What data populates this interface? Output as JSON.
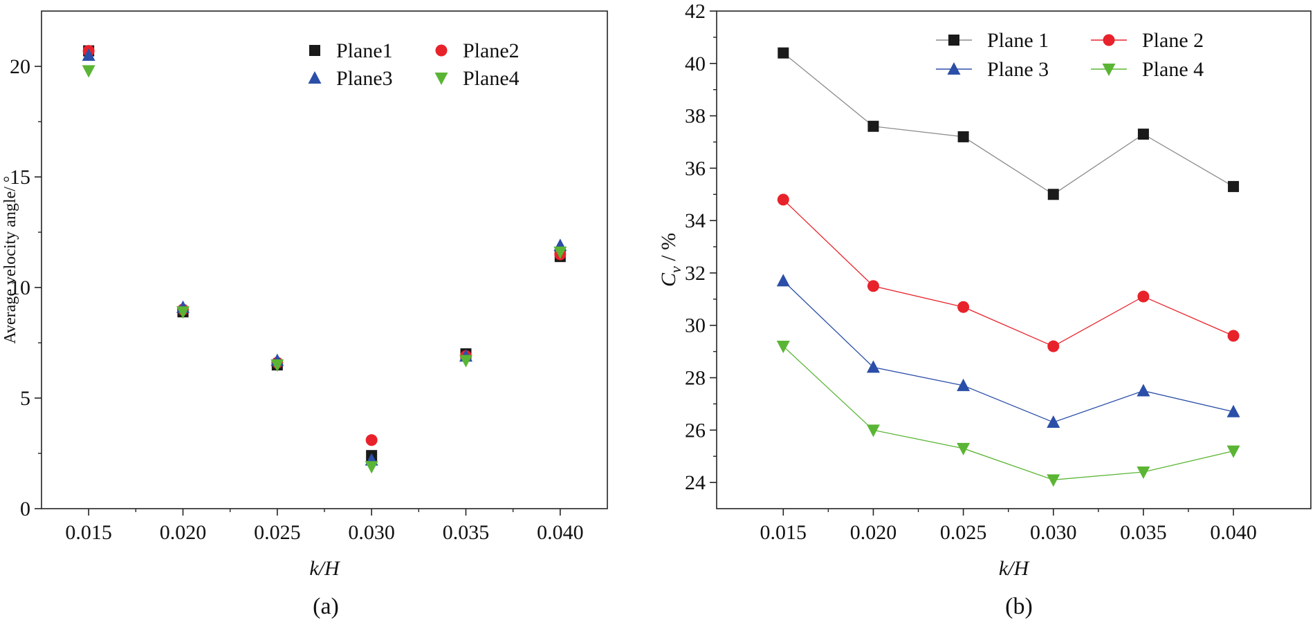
{
  "figure": {
    "panels": [
      "(a)",
      "(b)"
    ]
  },
  "chart_data": [
    {
      "id": "a",
      "type": "scatter",
      "panel_label": "(a)",
      "xlabel": "k/H",
      "ylabel": "Average velocity angle/ °",
      "categories": [
        "0.015",
        "0.020",
        "0.025",
        "0.030",
        "0.035",
        "0.040"
      ],
      "x": [
        0.015,
        0.02,
        0.025,
        0.03,
        0.035,
        0.04
      ],
      "xlim": [
        0.0125,
        0.0425
      ],
      "ylim": [
        0,
        22.5
      ],
      "yticks": [
        0,
        5,
        10,
        15,
        20
      ],
      "legend_placement": "top-right",
      "legend_columns": 2,
      "series": [
        {
          "name": "Plane1",
          "marker": "square",
          "color": "#1a1a1a",
          "values": [
            20.7,
            8.9,
            6.5,
            2.4,
            7.0,
            11.4
          ]
        },
        {
          "name": "Plane2",
          "marker": "circle",
          "color": "#e8222a",
          "values": [
            20.7,
            9.0,
            6.6,
            3.1,
            6.9,
            11.5
          ]
        },
        {
          "name": "Plane3",
          "marker": "triangle-up",
          "color": "#2b4fa8",
          "values": [
            20.5,
            9.1,
            6.7,
            2.2,
            6.9,
            11.9
          ]
        },
        {
          "name": "Plane4",
          "marker": "triangle-down",
          "color": "#5ab534",
          "values": [
            19.8,
            8.9,
            6.5,
            1.9,
            6.7,
            11.6
          ]
        }
      ]
    },
    {
      "id": "b",
      "type": "line",
      "panel_label": "(b)",
      "xlabel": "k/H",
      "ylabel_main": "C",
      "ylabel_sub": "v",
      "ylabel_rest": " / %",
      "categories": [
        "0.015",
        "0.020",
        "0.025",
        "0.030",
        "0.035",
        "0.040"
      ],
      "x": [
        0.015,
        0.02,
        0.025,
        0.03,
        0.035,
        0.04
      ],
      "xlim": [
        0.0113,
        0.0443
      ],
      "ylim": [
        23,
        42
      ],
      "yticks": [
        24,
        26,
        28,
        30,
        32,
        34,
        36,
        38,
        40,
        42
      ],
      "legend_placement": "top",
      "legend_columns": 2,
      "series": [
        {
          "name": "Plane 1",
          "marker": "square",
          "color": "#1a1a1a",
          "line_color": "#8a8a8a",
          "values": [
            40.4,
            37.6,
            37.2,
            35.0,
            37.3,
            35.3
          ]
        },
        {
          "name": "Plane 2",
          "marker": "circle",
          "color": "#e8222a",
          "line_color": "#e8222a",
          "values": [
            34.8,
            31.5,
            30.7,
            29.2,
            31.1,
            29.6
          ]
        },
        {
          "name": "Plane 3",
          "marker": "triangle-up",
          "color": "#2b4fa8",
          "line_color": "#2b4fa8",
          "values": [
            31.7,
            28.4,
            27.7,
            26.3,
            27.5,
            26.7
          ]
        },
        {
          "name": "Plane 4",
          "marker": "triangle-down",
          "color": "#5ab534",
          "line_color": "#5ab534",
          "values": [
            29.2,
            26.0,
            25.3,
            24.1,
            24.4,
            25.2
          ]
        }
      ]
    }
  ]
}
